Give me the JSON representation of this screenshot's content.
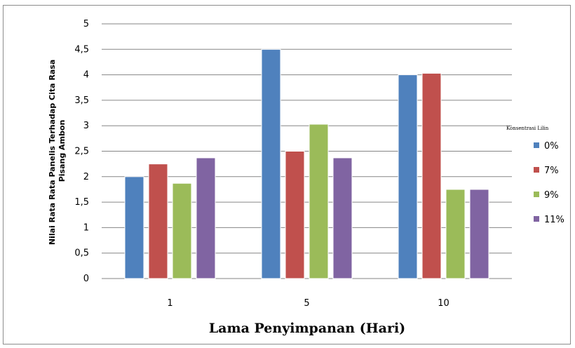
{
  "chart_data": {
    "type": "bar",
    "categories": [
      "1",
      "5",
      "10"
    ],
    "series": [
      {
        "name": "0%",
        "color": "#4f81bd",
        "values": [
          2.0,
          4.5,
          4.0
        ]
      },
      {
        "name": "7%",
        "color": "#c0504d",
        "values": [
          2.25,
          2.5,
          4.03
        ]
      },
      {
        "name": "9%",
        "color": "#9bbb59",
        "values": [
          1.87,
          3.03,
          1.75
        ]
      },
      {
        "name": "11%",
        "color": "#8064a2",
        "values": [
          2.37,
          2.37,
          1.75
        ]
      }
    ],
    "xlabel": "Lama Penyimpanan (Hari)",
    "ylabel_lines": [
      "Nilai Rata Rata Panelis Terhadap Cita Rasa",
      "Pisang Ambon"
    ],
    "ylim": [
      0,
      5
    ],
    "yticks": [
      "0",
      "0,5",
      "1",
      "1,5",
      "2",
      "2,5",
      "3",
      "3,5",
      "4",
      "4,5",
      "5"
    ],
    "grid": true,
    "legend": {
      "title": "Konsentrasi Lilin",
      "position": "right"
    }
  }
}
